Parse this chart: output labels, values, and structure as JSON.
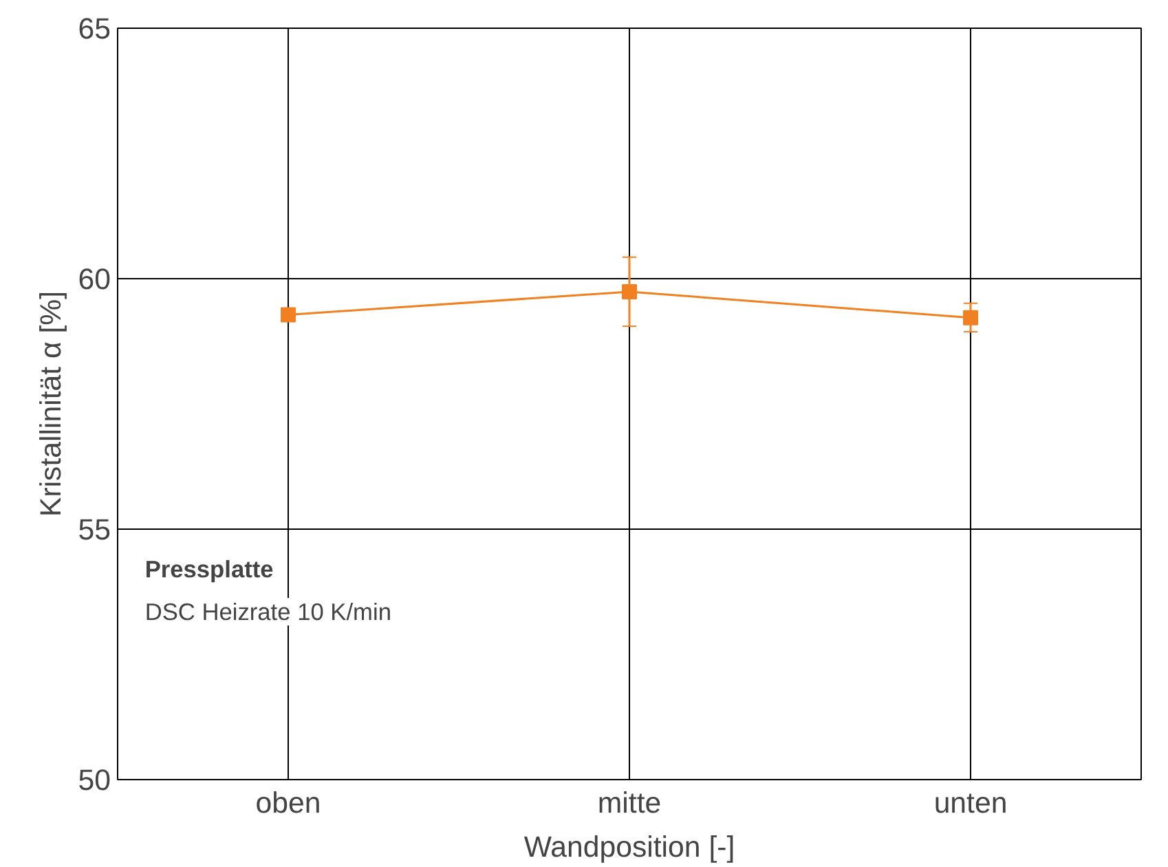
{
  "chart_data": {
    "type": "line",
    "xlabel": "Wandposition [-]",
    "ylabel": "Kristallinität α [%]",
    "categories": [
      "oben",
      "mitte",
      "unten"
    ],
    "series": [
      {
        "color": "#f08020",
        "values": [
          59.28,
          59.74,
          59.22
        ],
        "errors": [
          null,
          [
            59.05,
            60.43
          ],
          [
            58.94,
            59.51
          ]
        ]
      }
    ],
    "ylim": [
      50,
      65
    ],
    "yticks": [
      50,
      55,
      60,
      65
    ],
    "grid": true,
    "marker": "square",
    "line_style": "solid",
    "annotations": [
      "Pressplatte",
      "DSC Heizrate 10 K/min"
    ]
  }
}
